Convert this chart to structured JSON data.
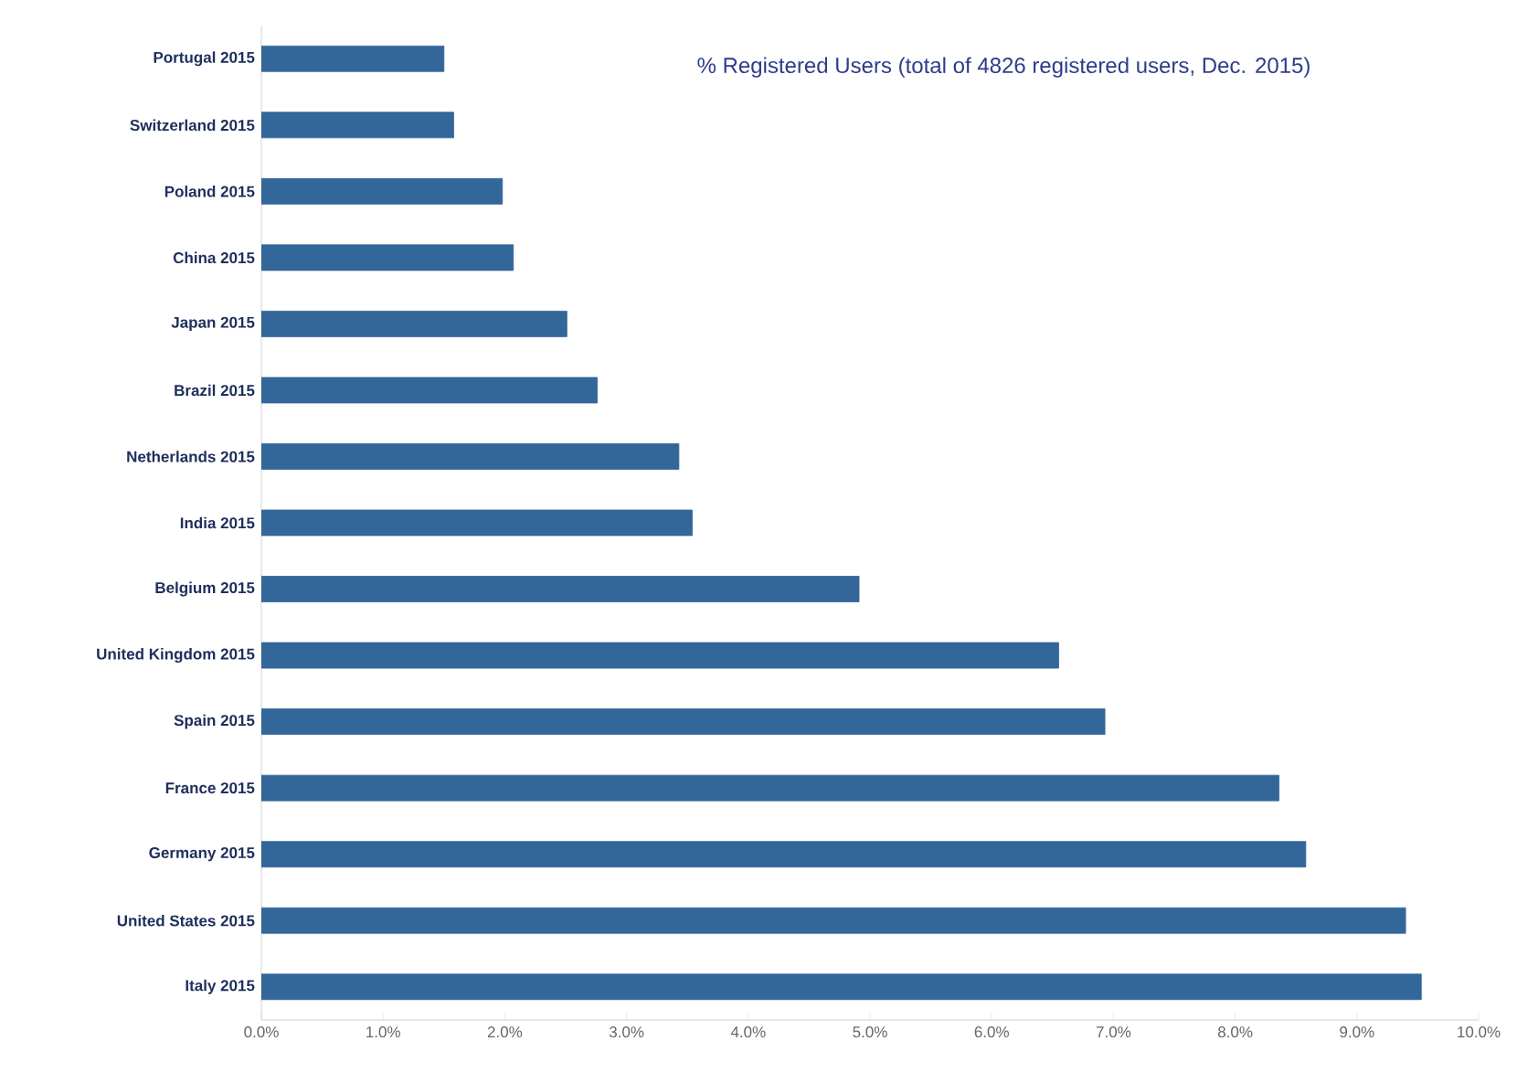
{
  "chart_data": {
    "type": "bar",
    "orientation": "horizontal",
    "title": "% Registered Users (total of 4826 registered users, Dec. 2015)",
    "categories": [
      "Portugal 2015",
      "Switzerland 2015",
      "Poland 2015",
      "China 2015",
      "Japan 2015",
      "Brazil 2015",
      "Netherlands 2015",
      "India 2015",
      "Belgium 2015",
      "United Kingdom 2015",
      "Spain 2015",
      "France 2015",
      "Germany 2015",
      "United States 2015",
      "Italy 2015"
    ],
    "values": [
      1.5,
      1.58,
      1.98,
      2.07,
      2.51,
      2.76,
      3.43,
      3.54,
      4.91,
      6.55,
      6.93,
      8.36,
      8.58,
      9.4,
      9.53
    ],
    "color": "#336699",
    "xlim": [
      0,
      10
    ],
    "xticks": [
      {
        "value": 0,
        "label": "0.0%"
      },
      {
        "value": 1,
        "label": "1.0%"
      },
      {
        "value": 2,
        "label": "2.0%"
      },
      {
        "value": 3,
        "label": "3.0%"
      },
      {
        "value": 4,
        "label": "4.0%"
      },
      {
        "value": 5,
        "label": "5.0%"
      },
      {
        "value": 6,
        "label": "6.0%"
      },
      {
        "value": 7,
        "label": "7.0%"
      },
      {
        "value": 8,
        "label": "8.0%"
      },
      {
        "value": 9,
        "label": "9.0%"
      },
      {
        "value": 10,
        "label": "10.0%"
      }
    ],
    "grid": false
  }
}
